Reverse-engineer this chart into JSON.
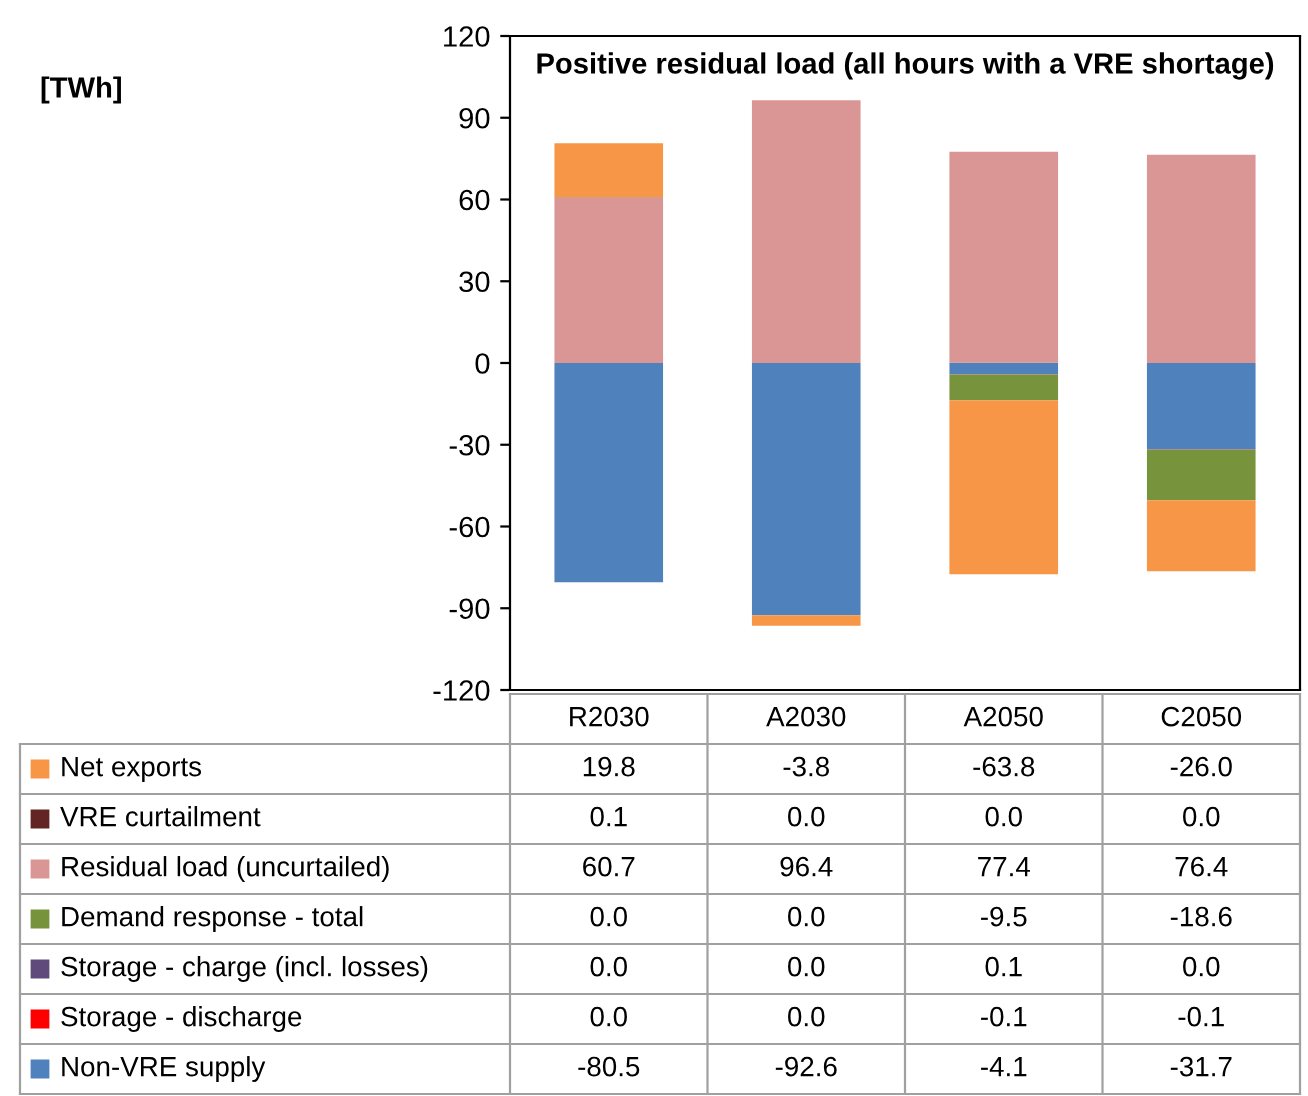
{
  "chart_data": {
    "type": "bar",
    "stacked": true,
    "title": "Positive residual load (all hours with a VRE shortage)",
    "annotations": [
      "[TWh]"
    ],
    "categories": [
      "R2030",
      "A2030",
      "A2050",
      "C2050"
    ],
    "series": [
      {
        "name": "Non-VRE supply",
        "color": "#4f81bd",
        "values": [
          -80.5,
          -92.6,
          -4.1,
          -31.7
        ],
        "value_labels": [
          "-80.5",
          "-92.6",
          "-4.1",
          "-31.7"
        ]
      },
      {
        "name": "Storage - discharge",
        "color": "#ff0000",
        "values": [
          0.0,
          0.0,
          -0.1,
          -0.1
        ],
        "value_labels": [
          "0.0",
          "0.0",
          "-0.1",
          "-0.1"
        ]
      },
      {
        "name": "Storage - charge (incl. losses)",
        "color": "#604a7b",
        "values": [
          0.0,
          0.0,
          0.1,
          0.0
        ],
        "value_labels": [
          "0.0",
          "0.0",
          "0.1",
          "0.0"
        ]
      },
      {
        "name": "Demand response - total",
        "color": "#77933c",
        "values": [
          0.0,
          0.0,
          -9.5,
          -18.6
        ],
        "value_labels": [
          "0.0",
          "0.0",
          "-9.5",
          "-18.6"
        ]
      },
      {
        "name": "Residual load (uncurtailed)",
        "color": "#d99694",
        "values": [
          60.7,
          96.4,
          77.4,
          76.4
        ],
        "value_labels": [
          "60.7",
          "96.4",
          "77.4",
          "76.4"
        ]
      },
      {
        "name": "VRE curtailment",
        "color": "#632523",
        "values": [
          0.1,
          0.0,
          0.0,
          0.0
        ],
        "value_labels": [
          "0.1",
          "0.0",
          "0.0",
          "0.0"
        ]
      },
      {
        "name": "Net exports",
        "color": "#f79646",
        "values": [
          19.8,
          -3.8,
          -63.8,
          -26.0
        ],
        "value_labels": [
          "19.8",
          "-3.8",
          "-63.8",
          "-26.0"
        ]
      }
    ],
    "ylim": [
      -120,
      120
    ],
    "yticks": [
      -120,
      -90,
      -60,
      -30,
      0,
      30,
      60,
      90,
      120
    ],
    "legend": "bottom",
    "grid": false
  }
}
